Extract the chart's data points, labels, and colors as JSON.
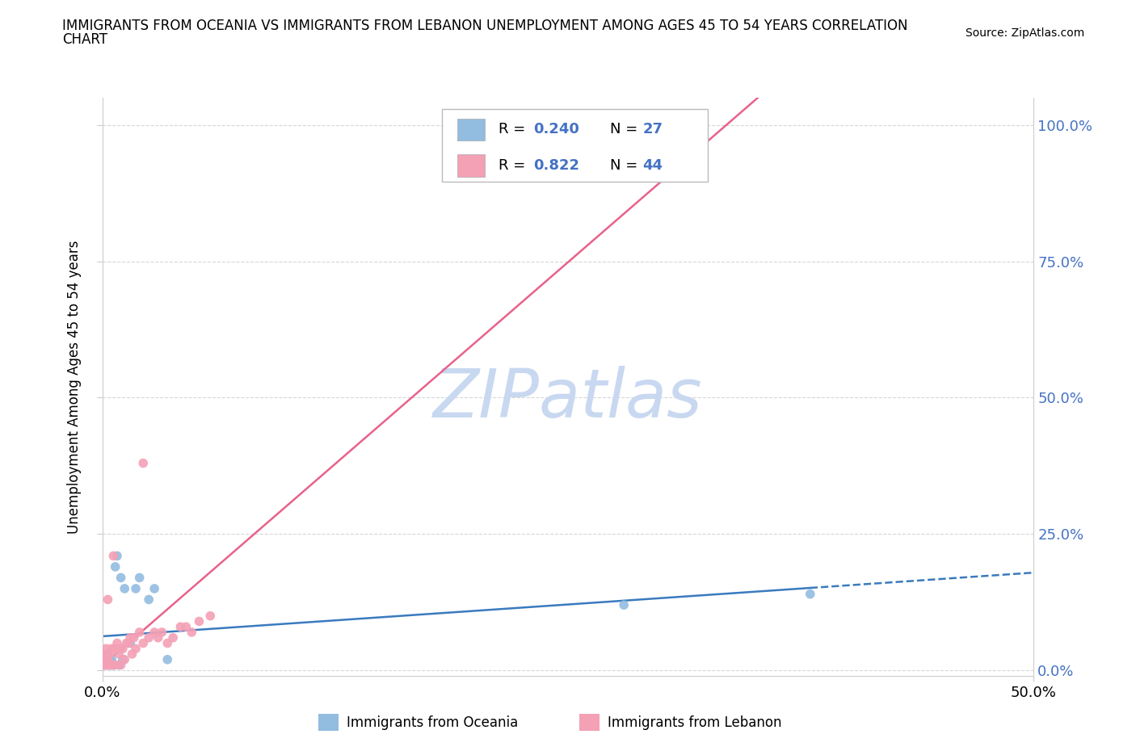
{
  "title_line1": "IMMIGRANTS FROM OCEANIA VS IMMIGRANTS FROM LEBANON UNEMPLOYMENT AMONG AGES 45 TO 54 YEARS CORRELATION",
  "title_line2": "CHART",
  "source": "Source: ZipAtlas.com",
  "ylabel": "Unemployment Among Ages 45 to 54 years",
  "xlim": [
    0.0,
    0.5
  ],
  "ylim": [
    -0.01,
    1.05
  ],
  "yticks": [
    0.0,
    0.25,
    0.5,
    0.75,
    1.0
  ],
  "ytick_labels": [
    "0.0%",
    "25.0%",
    "50.0%",
    "75.0%",
    "100.0%"
  ],
  "xticks": [
    0.0,
    0.5
  ],
  "xtick_labels": [
    "0.0%",
    "50.0%"
  ],
  "oceania_R": 0.24,
  "oceania_N": 27,
  "lebanon_R": 0.822,
  "lebanon_N": 44,
  "oceania_color": "#92bce0",
  "lebanon_color": "#f4a0b5",
  "oceania_line_color": "#3a7abf",
  "lebanon_line_color": "#e8628a",
  "background_color": "#ffffff",
  "watermark": "ZIPatlas",
  "watermark_color": "#c8d8f0",
  "label_color": "#4472c4",
  "oceania_x": [
    0.001,
    0.001,
    0.002,
    0.002,
    0.002,
    0.003,
    0.003,
    0.003,
    0.004,
    0.004,
    0.005,
    0.005,
    0.006,
    0.007,
    0.008,
    0.009,
    0.01,
    0.011,
    0.012,
    0.015,
    0.018,
    0.02,
    0.025,
    0.028,
    0.035,
    0.28,
    0.38
  ],
  "oceania_y": [
    0.01,
    0.02,
    0.01,
    0.02,
    0.03,
    0.01,
    0.02,
    0.03,
    0.01,
    0.02,
    0.01,
    0.02,
    0.01,
    0.19,
    0.21,
    0.01,
    0.17,
    0.02,
    0.15,
    0.05,
    0.15,
    0.17,
    0.13,
    0.15,
    0.02,
    0.12,
    0.14
  ],
  "lebanon_x": [
    0.001,
    0.001,
    0.001,
    0.002,
    0.002,
    0.002,
    0.003,
    0.003,
    0.003,
    0.004,
    0.004,
    0.005,
    0.005,
    0.006,
    0.006,
    0.007,
    0.007,
    0.008,
    0.009,
    0.01,
    0.01,
    0.011,
    0.012,
    0.013,
    0.014,
    0.015,
    0.016,
    0.017,
    0.018,
    0.02,
    0.022,
    0.025,
    0.028,
    0.03,
    0.032,
    0.035,
    0.038,
    0.042,
    0.045,
    0.048,
    0.052,
    0.058,
    0.022,
    0.315
  ],
  "lebanon_y": [
    0.01,
    0.02,
    0.03,
    0.01,
    0.02,
    0.04,
    0.01,
    0.02,
    0.13,
    0.01,
    0.03,
    0.01,
    0.04,
    0.01,
    0.21,
    0.01,
    0.04,
    0.05,
    0.03,
    0.04,
    0.01,
    0.04,
    0.02,
    0.05,
    0.05,
    0.06,
    0.03,
    0.06,
    0.04,
    0.07,
    0.05,
    0.06,
    0.07,
    0.06,
    0.07,
    0.05,
    0.06,
    0.08,
    0.08,
    0.07,
    0.09,
    0.1,
    0.38,
    1.0
  ]
}
